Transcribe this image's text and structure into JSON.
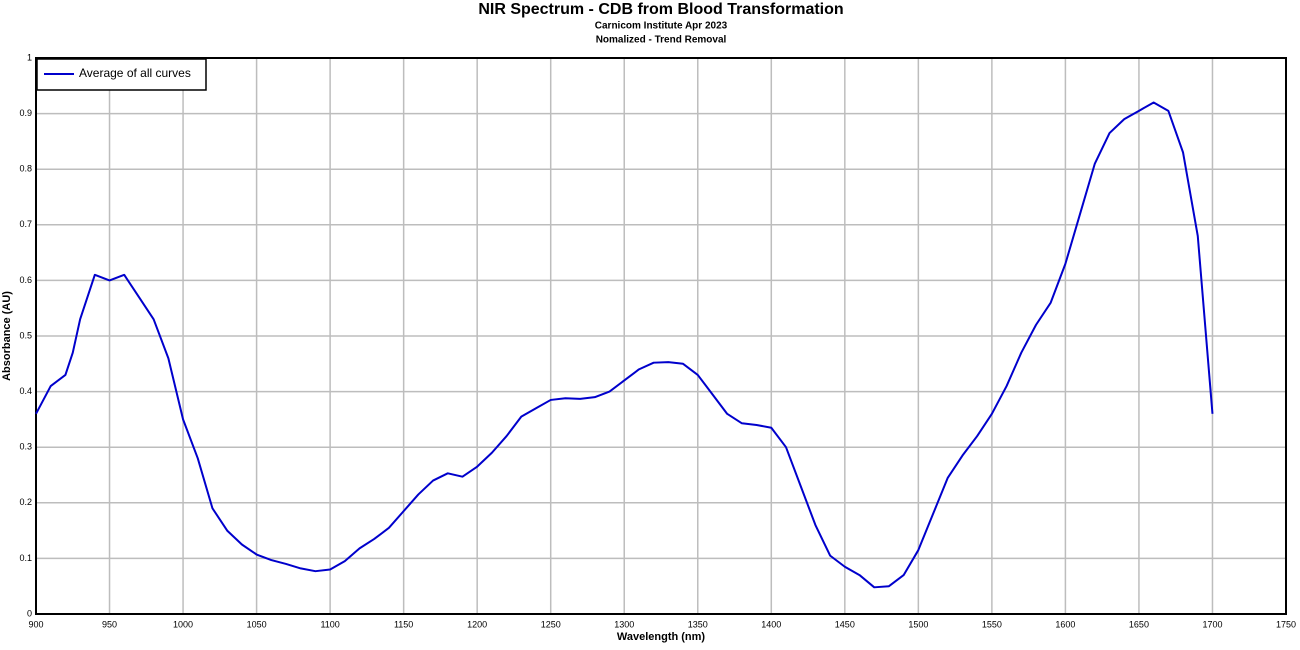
{
  "chart_data": {
    "type": "line",
    "title": "NIR Spectrum - CDB from Blood Transformation",
    "subtitle": [
      "Carnicom Institute Apr 2023",
      "Nomalized - Trend Removal"
    ],
    "x_label": "Wavelength (nm)",
    "y_label": "Absorbance (AU)",
    "xlim": [
      900,
      1750
    ],
    "ylim": [
      0,
      1
    ],
    "xticks": [
      900,
      950,
      1000,
      1050,
      1100,
      1150,
      1200,
      1250,
      1300,
      1350,
      1400,
      1450,
      1500,
      1550,
      1600,
      1650,
      1700,
      1750
    ],
    "yticks": [
      0,
      0.1,
      0.2,
      0.3,
      0.4,
      0.5,
      0.6,
      0.7,
      0.8,
      0.9,
      1
    ],
    "grid": true,
    "legend": "upper left",
    "x": [
      900,
      910,
      920,
      925,
      930,
      940,
      950,
      960,
      970,
      980,
      990,
      1000,
      1010,
      1020,
      1030,
      1040,
      1050,
      1060,
      1070,
      1080,
      1090,
      1100,
      1110,
      1120,
      1130,
      1140,
      1150,
      1160,
      1170,
      1180,
      1190,
      1200,
      1210,
      1220,
      1230,
      1240,
      1250,
      1260,
      1270,
      1280,
      1290,
      1300,
      1310,
      1320,
      1330,
      1340,
      1350,
      1360,
      1370,
      1380,
      1390,
      1400,
      1410,
      1420,
      1430,
      1440,
      1450,
      1460,
      1470,
      1480,
      1490,
      1500,
      1510,
      1520,
      1530,
      1540,
      1550,
      1560,
      1570,
      1580,
      1590,
      1600,
      1610,
      1620,
      1630,
      1640,
      1650,
      1660,
      1670,
      1680,
      1690,
      1700
    ],
    "series": [
      {
        "name": "Average of all curves",
        "color": "#0000cc",
        "values": [
          0.36,
          0.41,
          0.43,
          0.47,
          0.53,
          0.61,
          0.6,
          0.61,
          0.57,
          0.53,
          0.46,
          0.35,
          0.28,
          0.19,
          0.15,
          0.125,
          0.107,
          0.097,
          0.09,
          0.082,
          0.077,
          0.08,
          0.095,
          0.118,
          0.135,
          0.155,
          0.185,
          0.215,
          0.24,
          0.253,
          0.247,
          0.265,
          0.29,
          0.32,
          0.355,
          0.37,
          0.385,
          0.388,
          0.387,
          0.39,
          0.4,
          0.42,
          0.44,
          0.452,
          0.453,
          0.45,
          0.43,
          0.395,
          0.36,
          0.343,
          0.34,
          0.335,
          0.3,
          0.23,
          0.16,
          0.105,
          0.085,
          0.07,
          0.048,
          0.05,
          0.07,
          0.115,
          0.18,
          0.245,
          0.285,
          0.32,
          0.36,
          0.41,
          0.47,
          0.52,
          0.56,
          0.63,
          0.72,
          0.81,
          0.865,
          0.89,
          0.905,
          0.92,
          0.905,
          0.83,
          0.68,
          0.36
        ]
      }
    ]
  }
}
